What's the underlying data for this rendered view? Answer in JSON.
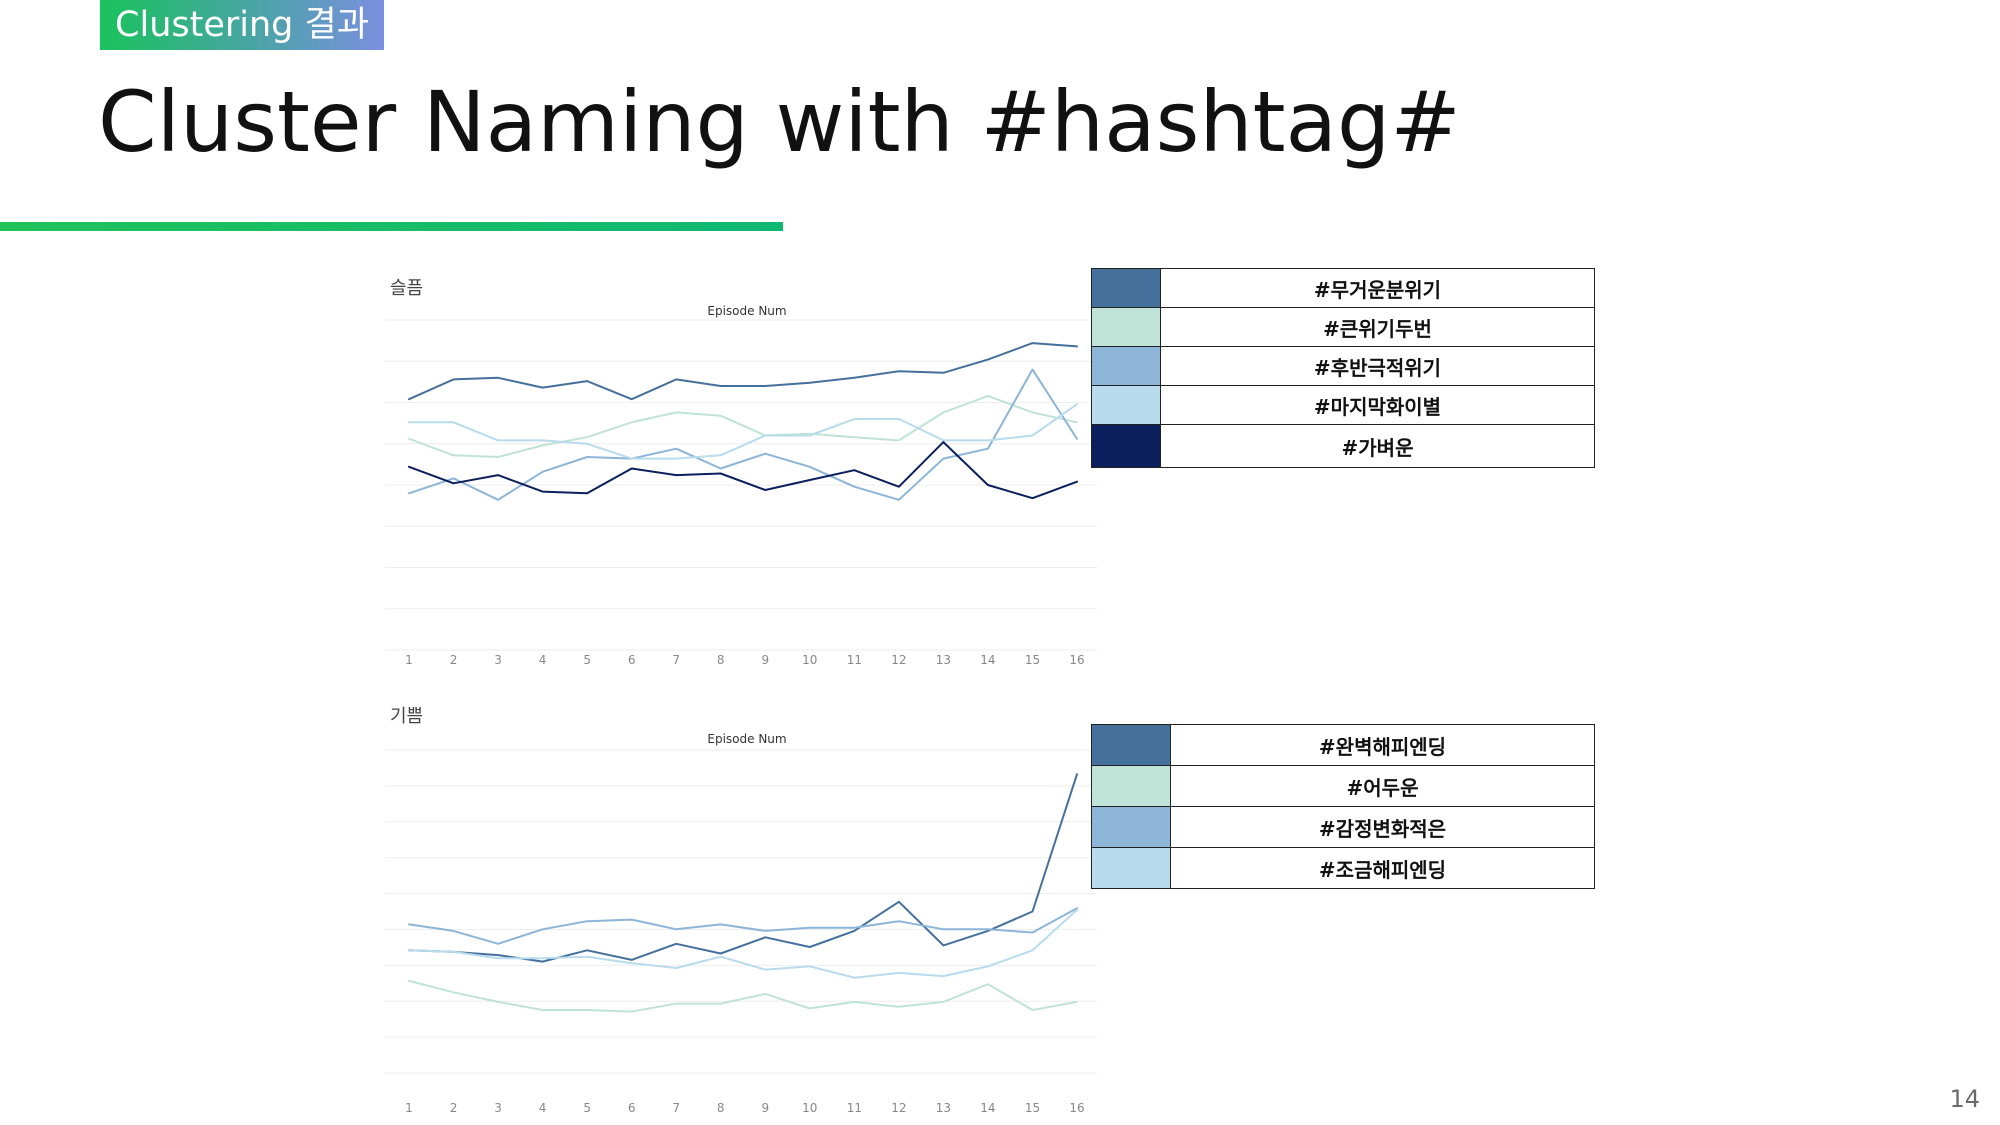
{
  "header": {
    "badge": "Clustering 결과",
    "title": "Cluster Naming with #hashtag#",
    "page_number": "14"
  },
  "colors": {
    "dark_blue": "#45709c",
    "mint": "#bfe3d6",
    "mid_blue": "#8cb5d8",
    "light_blue": "#b8dbee",
    "navy": "#0b1f5c"
  },
  "chart_data": [
    {
      "type": "line",
      "label": "슬픔",
      "title": "Episode Num",
      "categories": [
        "1",
        "2",
        "3",
        "4",
        "5",
        "6",
        "7",
        "8",
        "9",
        "10",
        "11",
        "12",
        "13",
        "14",
        "15",
        "16"
      ],
      "ylim": [
        0,
        10
      ],
      "series": [
        {
          "name": "#무거운분위기",
          "color": "#45709c",
          "values": [
            7.6,
            8.2,
            8.25,
            7.95,
            8.15,
            7.6,
            8.2,
            8.0,
            8.0,
            8.1,
            8.25,
            8.45,
            8.4,
            8.8,
            9.3,
            9.2
          ]
        },
        {
          "name": "#큰위기두번",
          "color": "#bfe3d6",
          "values": [
            6.4,
            5.9,
            5.85,
            6.2,
            6.45,
            6.9,
            7.2,
            7.1,
            6.5,
            6.55,
            6.45,
            6.35,
            7.2,
            7.7,
            7.2,
            6.9
          ]
        },
        {
          "name": "#후반극적위기",
          "color": "#8cb5d8",
          "values": [
            4.75,
            5.2,
            4.55,
            5.4,
            5.85,
            5.8,
            6.1,
            5.5,
            5.95,
            5.55,
            4.95,
            4.55,
            5.8,
            6.1,
            8.5,
            6.4
          ]
        },
        {
          "name": "#마지막화이별",
          "color": "#b8dbee",
          "values": [
            6.9,
            6.9,
            6.35,
            6.35,
            6.25,
            5.8,
            5.8,
            5.9,
            6.5,
            6.5,
            7.0,
            7.0,
            6.35,
            6.35,
            6.5,
            7.45
          ]
        },
        {
          "name": "#가벼운",
          "color": "#0b1f5c",
          "values": [
            5.55,
            5.05,
            5.3,
            4.8,
            4.75,
            5.5,
            5.3,
            5.35,
            4.85,
            5.15,
            5.45,
            4.95,
            6.3,
            5.0,
            4.6,
            5.1
          ]
        }
      ]
    },
    {
      "type": "line",
      "label": "기쁨",
      "title": "Episode Num",
      "categories": [
        "1",
        "2",
        "3",
        "4",
        "5",
        "6",
        "7",
        "8",
        "9",
        "10",
        "11",
        "12",
        "13",
        "14",
        "15",
        "16"
      ],
      "ylim": [
        0,
        10
      ],
      "series": [
        {
          "name": "#완벽해피엔딩",
          "color": "#45709c",
          "values": [
            3.8,
            3.75,
            3.65,
            3.45,
            3.8,
            3.5,
            4.0,
            3.7,
            4.2,
            3.9,
            4.4,
            5.3,
            3.95,
            4.4,
            5.0,
            9.25
          ]
        },
        {
          "name": "#어두운",
          "color": "#bfe3d6",
          "values": [
            2.85,
            2.5,
            2.2,
            1.95,
            1.95,
            1.9,
            2.15,
            2.15,
            2.45,
            2.0,
            2.2,
            2.05,
            2.2,
            2.75,
            1.95,
            2.2
          ]
        },
        {
          "name": "#감정변화적은",
          "color": "#8cb5d8",
          "values": [
            4.6,
            4.4,
            4.0,
            4.45,
            4.7,
            4.75,
            4.45,
            4.6,
            4.4,
            4.5,
            4.5,
            4.7,
            4.45,
            4.45,
            4.35,
            5.1
          ]
        },
        {
          "name": "#조금해피엔딩",
          "color": "#b8dbee",
          "values": [
            3.8,
            3.75,
            3.55,
            3.55,
            3.6,
            3.4,
            3.25,
            3.6,
            3.2,
            3.3,
            2.95,
            3.1,
            3.0,
            3.3,
            3.8,
            5.05
          ]
        }
      ]
    }
  ]
}
